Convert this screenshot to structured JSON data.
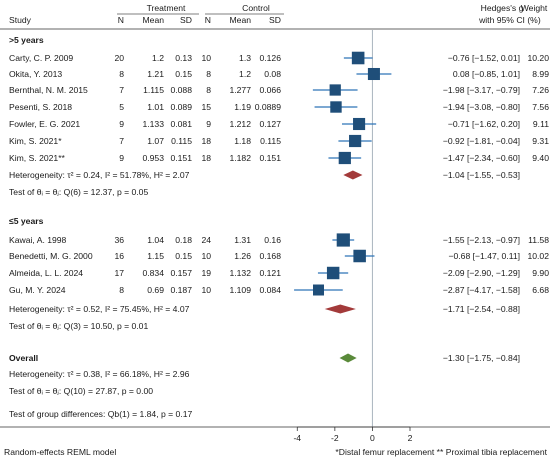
{
  "chart_data": {
    "type": "forest",
    "header": {
      "study": "Study",
      "treatment": "Treatment",
      "control": "Control",
      "n": "N",
      "mean": "Mean",
      "sd": "SD",
      "effect_line1": "Hedges's g",
      "effect_line2": "with 95% CI",
      "weight_line1": "Weight",
      "weight_line2": "(%)"
    },
    "groups": [
      {
        "name": ">5 years",
        "studies": [
          {
            "study": "Carty, C. P. 2009",
            "tn": "20",
            "tmean": "1.2",
            "tsd": "0.13",
            "cn": "10",
            "cmean": "1.3",
            "csd": "0.126",
            "g": -0.76,
            "lo": -1.52,
            "hi": 0.01,
            "ci_text": "−0.76 [−1.52,   0.01]",
            "weight": 10.2,
            "weight_text": "10.20"
          },
          {
            "study": "Okita, Y. 2013",
            "tn": "8",
            "tmean": "1.21",
            "tsd": "0.15",
            "cn": "8",
            "cmean": "1.2",
            "csd": "0.08",
            "g": 0.08,
            "lo": -0.85,
            "hi": 1.01,
            "ci_text": "0.08 [−0.85,   1.01]",
            "weight": 8.99,
            "weight_text": "8.99"
          },
          {
            "study": "Bernthal, N. M. 2015",
            "tn": "7",
            "tmean": "1.115",
            "tsd": "0.088",
            "cn": "8",
            "cmean": "1.277",
            "csd": "0.066",
            "g": -1.98,
            "lo": -3.17,
            "hi": -0.79,
            "ci_text": "−1.98 [−3.17, −0.79]",
            "weight": 7.26,
            "weight_text": "7.26"
          },
          {
            "study": "Pesenti, S. 2018",
            "tn": "5",
            "tmean": "1.01",
            "tsd": "0.089",
            "cn": "15",
            "cmean": "1.19",
            "csd": "0.0889",
            "g": -1.94,
            "lo": -3.08,
            "hi": -0.8,
            "ci_text": "−1.94 [−3.08, −0.80]",
            "weight": 7.56,
            "weight_text": "7.56"
          },
          {
            "study": "Fowler, E. G. 2021",
            "tn": "9",
            "tmean": "1.133",
            "tsd": "0.081",
            "cn": "9",
            "cmean": "1.212",
            "csd": "0.127",
            "g": -0.71,
            "lo": -1.62,
            "hi": 0.2,
            "ci_text": "−0.71 [−1.62,   0.20]",
            "weight": 9.11,
            "weight_text": "9.11"
          },
          {
            "study": "Kim, S. 2021*",
            "tn": "7",
            "tmean": "1.07",
            "tsd": "0.115",
            "cn": "18",
            "cmean": "1.18",
            "csd": "0.115",
            "g": -0.92,
            "lo": -1.81,
            "hi": -0.04,
            "ci_text": "−0.92 [−1.81, −0.04]",
            "weight": 9.31,
            "weight_text": "9.31"
          },
          {
            "study": "Kim, S. 2021**",
            "tn": "9",
            "tmean": "0.953",
            "tsd": "0.151",
            "cn": "18",
            "cmean": "1.182",
            "csd": "0.151",
            "g": -1.47,
            "lo": -2.34,
            "hi": -0.6,
            "ci_text": "−1.47 [−2.34, −0.60]",
            "weight": 9.4,
            "weight_text": "9.40"
          }
        ],
        "summary": {
          "label": "Heterogeneity: τ² = 0.24, I² = 51.78%, H² = 2.07",
          "g": -1.04,
          "lo": -1.55,
          "hi": -0.53,
          "ci_text": "−1.04 [−1.55, −0.53]",
          "color": "#a33a3a"
        },
        "test": "Test of θᵢ = θⱼ: Q(6) = 12.37, p = 0.05"
      },
      {
        "name": "≤5 years",
        "studies": [
          {
            "study": "Kawai, A. 1998",
            "tn": "36",
            "tmean": "1.04",
            "tsd": "0.18",
            "cn": "24",
            "cmean": "1.31",
            "csd": "0.16",
            "g": -1.55,
            "lo": -2.13,
            "hi": -0.97,
            "ci_text": "−1.55 [−2.13, −0.97]",
            "weight": 11.58,
            "weight_text": "11.58"
          },
          {
            "study": "Benedetti, M. G. 2000",
            "tn": "16",
            "tmean": "1.15",
            "tsd": "0.15",
            "cn": "10",
            "cmean": "1.26",
            "csd": "0.168",
            "g": -0.68,
            "lo": -1.47,
            "hi": 0.11,
            "ci_text": "−0.68 [−1.47,   0.11]",
            "weight": 10.02,
            "weight_text": "10.02"
          },
          {
            "study": "Almeida, L. L. 2024",
            "tn": "17",
            "tmean": "0.834",
            "tsd": "0.157",
            "cn": "19",
            "cmean": "1.132",
            "csd": "0.121",
            "g": -2.09,
            "lo": -2.9,
            "hi": -1.29,
            "ci_text": "−2.09 [−2.90, −1.29]",
            "weight": 9.9,
            "weight_text": "9.90"
          },
          {
            "study": "Gu, M. Y. 2024",
            "tn": "8",
            "tmean": "0.69",
            "tsd": "0.187",
            "cn": "10",
            "cmean": "1.109",
            "csd": "0.084",
            "g": -2.87,
            "lo": -4.17,
            "hi": -1.58,
            "ci_text": "−2.87 [−4.17, −1.58]",
            "weight": 6.68,
            "weight_text": "6.68"
          }
        ],
        "summary": {
          "label": "Heterogeneity: τ² = 0.52, I² = 75.45%, H² = 4.07",
          "g": -1.71,
          "lo": -2.54,
          "hi": -0.88,
          "ci_text": "−1.71 [−2.54, −0.88]",
          "color": "#a33a3a"
        },
        "test": "Test of θᵢ = θⱼ: Q(3) = 10.50, p = 0.01"
      }
    ],
    "overall": {
      "name": "Overall",
      "label": "Heterogeneity: τ² = 0.38, I² = 66.18%, H² = 2.96",
      "g": -1.3,
      "lo": -1.75,
      "hi": -0.84,
      "ci_text": "−1.30 [−1.75, −0.84]",
      "color": "#5a8a3a",
      "test": "Test of θᵢ = θⱼ: Q(10) = 27.87, p = 0.00"
    },
    "group_test": "Test of group differences: Qb(1) = 1.84, p = 0.17",
    "xaxis": {
      "ticks": [
        -4,
        -2,
        0,
        2
      ],
      "tick_labels": [
        "-4",
        "-2",
        "0",
        "2"
      ],
      "xlim": [
        -4.6,
        2.0
      ]
    },
    "marker_color": "#1f4e79",
    "ci_color": "#2e75b6",
    "footer_left": "Random-effects REML model",
    "footer_right": "*Distal femur replacement  ** Proximal tibia replacement"
  }
}
